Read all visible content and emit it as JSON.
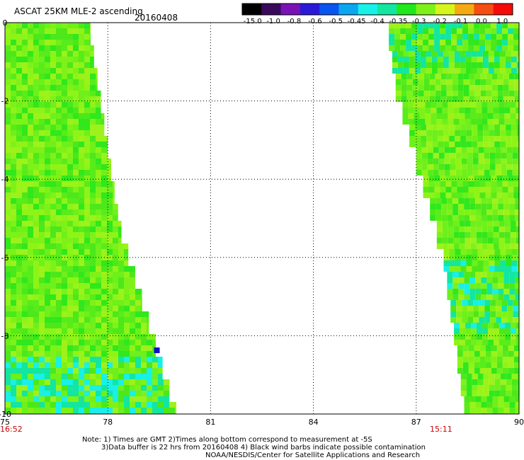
{
  "header": {
    "product": "ASCAT 25KM MLE-2 ascending",
    "date": "20160408"
  },
  "colorbar": {
    "labels": [
      "-15.0",
      "-1.0",
      "-0.8",
      "-0.6",
      "-0.5",
      "-0.45",
      "-0.4",
      "-0.35",
      "-0.3",
      "-0.2",
      "-0.1",
      "0.0",
      "1.0"
    ],
    "colors": [
      "#000000",
      "#3a0a5a",
      "#7a12b6",
      "#2a1ad8",
      "#0a55f0",
      "#0aa6f2",
      "#18f0e8",
      "#12e6a0",
      "#20e81a",
      "#7ef218",
      "#d6f51a",
      "#f5aa12",
      "#f54d12",
      "#f50a0a"
    ]
  },
  "axes": {
    "x_ticks": [
      "75",
      "78",
      "81",
      "84",
      "87",
      "90"
    ],
    "y_ticks": [
      "0",
      "-2",
      "-4",
      "-6",
      "-8",
      "-10"
    ],
    "xlim": [
      75,
      90
    ],
    "ylim": [
      -10,
      0
    ]
  },
  "swath_times": {
    "left": "16:52",
    "right": "15:11"
  },
  "notes": {
    "line1": "Note: 1) Times are GMT 2)Times along bottom correspond to measurement at -5S",
    "line2": "3)Data buffer is 22 hrs from 20160408 4) Black wind barbs indicate possible contamination",
    "line3": "NOAA/NESDIS/Center for Satellite Applications and Research"
  },
  "swaths": {
    "left": {
      "west_lon": 75.0,
      "east_edge_lon": [
        77.5,
        77.6,
        77.7,
        77.8,
        77.9,
        78.0,
        78.1,
        78.2,
        78.3,
        78.4,
        78.6,
        78.8,
        79.0,
        79.2,
        79.4,
        79.6,
        79.8,
        80.0
      ]
    },
    "right": {
      "east_lon": 90.0,
      "west_edge_lon": [
        86.2,
        86.3,
        86.4,
        86.6,
        86.8,
        87.0,
        87.2,
        87.4,
        87.6,
        87.8,
        87.9,
        88.0,
        88.1,
        88.2,
        88.3,
        88.4
      ]
    }
  }
}
